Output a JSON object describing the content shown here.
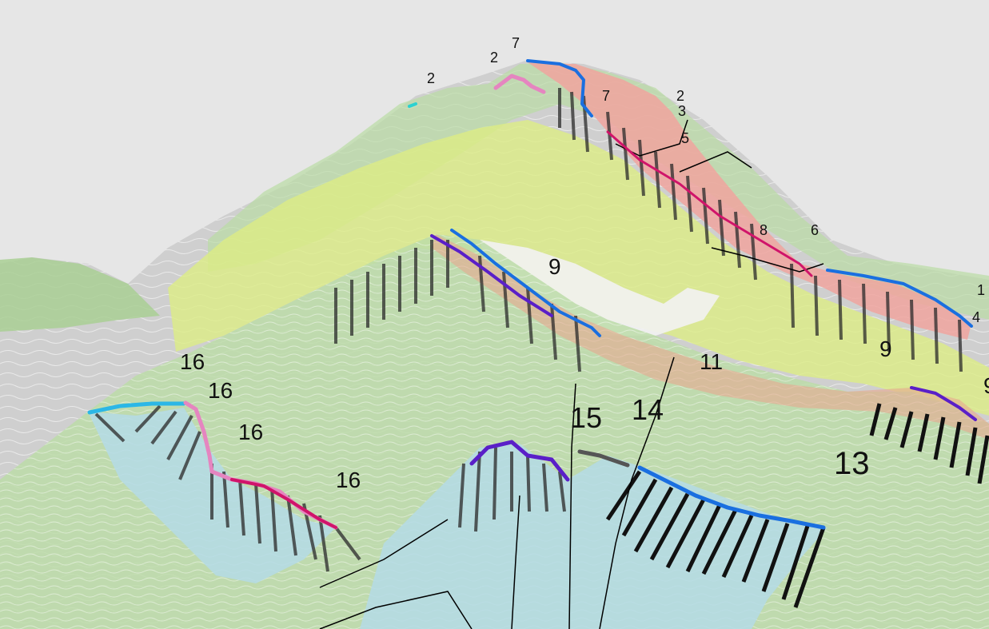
{
  "labels": {
    "l7a": "7",
    "l2a": "2",
    "l2b": "2",
    "l7b": "7",
    "l2c": "2",
    "l3": "3",
    "l5": "5",
    "l8": "8",
    "l6": "6",
    "l1": "1",
    "l4": "4",
    "l9a": "9",
    "l9b": "9",
    "l11": "11",
    "l16a": "16",
    "l16b": "16",
    "l16c": "16",
    "l16d": "16",
    "l15": "15",
    "l14": "14",
    "l13": "13",
    "l9c": "9"
  },
  "colors": {
    "background": "#e6e6e6",
    "terrain_gray": "#c9c9c9",
    "layer_green": "#b8d99a",
    "layer_yellow_green": "#d8ea80",
    "layer_pink": "#f2a6a0",
    "layer_light_blue": "#b4dbe6",
    "trace_blue": "#1a6fe0",
    "trace_purple": "#5a1fc8",
    "trace_pink": "#e0409a",
    "trace_magenta": "#d0146a",
    "trace_cyan": "#2bb7e6",
    "trace_dark_gray": "#555555"
  }
}
